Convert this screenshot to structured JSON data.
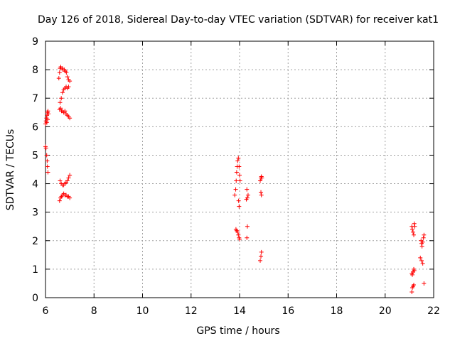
{
  "chart_data": {
    "type": "scatter",
    "title": "Day 126 of 2018, Sidereal Day-to-day VTEC variation (SDTVAR) for receiver kat1",
    "xlabel": "GPS time / hours",
    "ylabel": "SDTVAR / TECUs",
    "xlim": [
      6,
      22
    ],
    "ylim": [
      0,
      9
    ],
    "xticks": [
      6,
      8,
      10,
      12,
      14,
      16,
      18,
      20,
      22
    ],
    "yticks": [
      0,
      1,
      2,
      3,
      4,
      5,
      6,
      7,
      8,
      9
    ],
    "grid": true,
    "marker": "+",
    "series": [
      {
        "name": "SDTVAR",
        "color": "#ff0000",
        "points": [
          [
            6.0,
            5.3
          ],
          [
            6.02,
            5.25
          ],
          [
            6.05,
            5.0
          ],
          [
            6.07,
            4.8
          ],
          [
            6.08,
            4.6
          ],
          [
            6.1,
            4.4
          ],
          [
            6.0,
            6.1
          ],
          [
            6.02,
            6.2
          ],
          [
            6.04,
            6.3
          ],
          [
            6.06,
            6.4
          ],
          [
            6.08,
            6.5
          ],
          [
            6.1,
            6.55
          ],
          [
            6.12,
            6.45
          ],
          [
            6.05,
            6.15
          ],
          [
            6.09,
            6.25
          ],
          [
            6.55,
            7.7
          ],
          [
            6.58,
            7.9
          ],
          [
            6.6,
            8.05
          ],
          [
            6.63,
            8.1
          ],
          [
            6.68,
            8.05
          ],
          [
            6.72,
            8.0
          ],
          [
            6.78,
            8.0
          ],
          [
            6.82,
            7.95
          ],
          [
            6.86,
            7.9
          ],
          [
            6.9,
            7.75
          ],
          [
            6.95,
            7.65
          ],
          [
            7.0,
            7.6
          ],
          [
            6.6,
            6.85
          ],
          [
            6.65,
            7.0
          ],
          [
            6.7,
            7.2
          ],
          [
            6.75,
            7.3
          ],
          [
            6.8,
            7.35
          ],
          [
            6.85,
            7.4
          ],
          [
            6.9,
            7.35
          ],
          [
            6.95,
            7.4
          ],
          [
            6.58,
            6.6
          ],
          [
            6.62,
            6.65
          ],
          [
            6.66,
            6.55
          ],
          [
            6.7,
            6.55
          ],
          [
            6.75,
            6.5
          ],
          [
            6.8,
            6.55
          ],
          [
            6.85,
            6.45
          ],
          [
            6.9,
            6.4
          ],
          [
            6.95,
            6.35
          ],
          [
            7.0,
            6.3
          ],
          [
            6.58,
            3.4
          ],
          [
            6.62,
            3.5
          ],
          [
            6.66,
            3.55
          ],
          [
            6.7,
            3.6
          ],
          [
            6.75,
            3.65
          ],
          [
            6.8,
            3.6
          ],
          [
            6.85,
            3.6
          ],
          [
            6.9,
            3.55
          ],
          [
            6.95,
            3.55
          ],
          [
            7.0,
            3.5
          ],
          [
            6.6,
            4.1
          ],
          [
            6.65,
            4.0
          ],
          [
            6.7,
            3.95
          ],
          [
            6.75,
            3.95
          ],
          [
            6.8,
            4.0
          ],
          [
            6.85,
            4.05
          ],
          [
            6.9,
            4.1
          ],
          [
            6.95,
            4.2
          ],
          [
            7.0,
            4.3
          ],
          [
            13.85,
            2.4
          ],
          [
            13.88,
            2.35
          ],
          [
            13.92,
            2.3
          ],
          [
            13.95,
            2.2
          ],
          [
            13.98,
            2.1
          ],
          [
            14.0,
            2.05
          ],
          [
            13.8,
            3.6
          ],
          [
            13.84,
            3.8
          ],
          [
            13.86,
            4.1
          ],
          [
            13.88,
            4.4
          ],
          [
            13.9,
            4.6
          ],
          [
            13.92,
            4.8
          ],
          [
            13.95,
            4.9
          ],
          [
            13.98,
            4.6
          ],
          [
            14.0,
            4.3
          ],
          [
            14.02,
            4.1
          ],
          [
            13.96,
            3.4
          ],
          [
            13.98,
            3.2
          ],
          [
            14.28,
            3.45
          ],
          [
            14.32,
            3.5
          ],
          [
            14.35,
            3.6
          ],
          [
            14.3,
            3.8
          ],
          [
            14.3,
            2.1
          ],
          [
            14.32,
            2.5
          ],
          [
            14.85,
            4.1
          ],
          [
            14.88,
            4.2
          ],
          [
            14.9,
            4.25
          ],
          [
            14.92,
            4.2
          ],
          [
            14.88,
            3.7
          ],
          [
            14.9,
            3.6
          ],
          [
            14.85,
            1.3
          ],
          [
            14.88,
            1.45
          ],
          [
            14.9,
            1.6
          ],
          [
            21.1,
            2.5
          ],
          [
            21.12,
            2.4
          ],
          [
            21.15,
            2.3
          ],
          [
            21.18,
            2.2
          ],
          [
            21.2,
            2.6
          ],
          [
            21.22,
            2.5
          ],
          [
            21.1,
            0.85
          ],
          [
            21.12,
            0.8
          ],
          [
            21.15,
            0.9
          ],
          [
            21.18,
            1.0
          ],
          [
            21.2,
            0.95
          ],
          [
            21.1,
            0.2
          ],
          [
            21.12,
            0.35
          ],
          [
            21.15,
            0.4
          ],
          [
            21.18,
            0.45
          ],
          [
            21.45,
            1.4
          ],
          [
            21.5,
            1.3
          ],
          [
            21.55,
            1.2
          ],
          [
            21.48,
            2.0
          ],
          [
            21.5,
            1.9
          ],
          [
            21.52,
            1.8
          ],
          [
            21.55,
            1.95
          ],
          [
            21.58,
            2.1
          ],
          [
            21.6,
            2.2
          ],
          [
            21.6,
            0.5
          ]
        ]
      }
    ]
  }
}
